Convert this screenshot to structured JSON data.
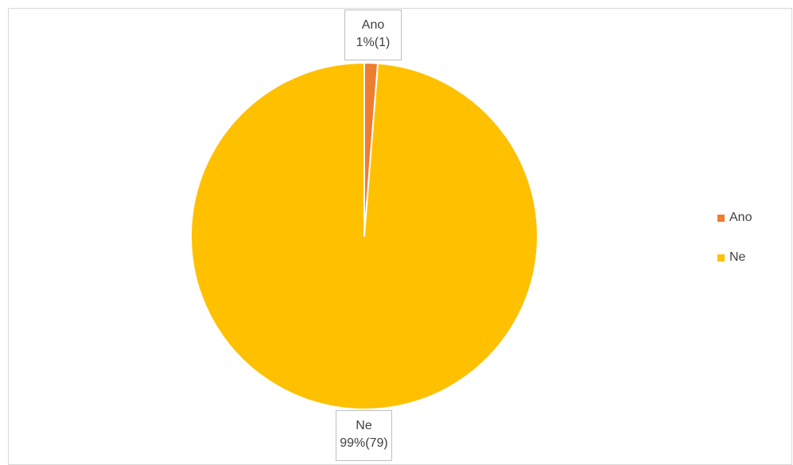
{
  "chart_data": {
    "type": "pie",
    "categories": [
      "Ano",
      "Ne"
    ],
    "values": [
      1,
      79
    ],
    "percent_labels": [
      "1%(1)",
      "99%(79)"
    ],
    "colors": [
      "#ED7D31",
      "#FFC000"
    ],
    "legend": {
      "position": "right",
      "entries": [
        "Ano",
        "Ne"
      ]
    },
    "start_angle_deg": 0,
    "direction": "clockwise"
  }
}
